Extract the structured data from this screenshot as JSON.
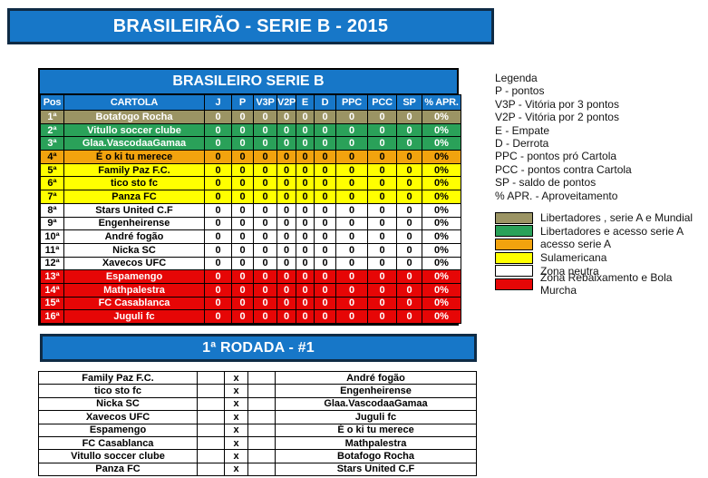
{
  "colors": {
    "banner_blue": "#1777c8",
    "banner_border": "#0f2b45",
    "grid_black": "#000000"
  },
  "top_banner": {
    "title": "BRASILEIRÃO - SERIE B - 2015"
  },
  "standings": {
    "title": "BRASILEIRO SERIE B",
    "columns": [
      "Pos",
      "CARTOLA",
      "J",
      "P",
      "V3P",
      "V2P",
      "E",
      "D",
      "PPC",
      "PCC",
      "SP",
      "% APR."
    ],
    "rows": [
      {
        "pos": "1ª",
        "team": "Botafogo Rocha",
        "zone": "mundial",
        "stats": [
          "0",
          "0",
          "0",
          "0",
          "0",
          "0",
          "0",
          "0",
          "0",
          "0%"
        ]
      },
      {
        "pos": "2ª",
        "team": "Vitullo soccer clube",
        "zone": "libertadores",
        "stats": [
          "0",
          "0",
          "0",
          "0",
          "0",
          "0",
          "0",
          "0",
          "0",
          "0%"
        ]
      },
      {
        "pos": "3ª",
        "team": "Glaa.VascodaaGamaa",
        "zone": "libertadores",
        "stats": [
          "0",
          "0",
          "0",
          "0",
          "0",
          "0",
          "0",
          "0",
          "0",
          "0%"
        ]
      },
      {
        "pos": "4ª",
        "team": "É o ki tu merece",
        "zone": "acesso",
        "stats": [
          "0",
          "0",
          "0",
          "0",
          "0",
          "0",
          "0",
          "0",
          "0",
          "0%"
        ]
      },
      {
        "pos": "5ª",
        "team": "Family Paz F.C.",
        "zone": "sulamericana",
        "stats": [
          "0",
          "0",
          "0",
          "0",
          "0",
          "0",
          "0",
          "0",
          "0",
          "0%"
        ]
      },
      {
        "pos": "6ª",
        "team": "tico sto fc",
        "zone": "sulamericana",
        "stats": [
          "0",
          "0",
          "0",
          "0",
          "0",
          "0",
          "0",
          "0",
          "0",
          "0%"
        ]
      },
      {
        "pos": "7ª",
        "team": "Panza FC",
        "zone": "sulamericana",
        "stats": [
          "0",
          "0",
          "0",
          "0",
          "0",
          "0",
          "0",
          "0",
          "0",
          "0%"
        ]
      },
      {
        "pos": "8ª",
        "team": "Stars United C.F",
        "zone": "neutra",
        "stats": [
          "0",
          "0",
          "0",
          "0",
          "0",
          "0",
          "0",
          "0",
          "0",
          "0%"
        ]
      },
      {
        "pos": "9ª",
        "team": "Engenheirense",
        "zone": "neutra",
        "stats": [
          "0",
          "0",
          "0",
          "0",
          "0",
          "0",
          "0",
          "0",
          "0",
          "0%"
        ]
      },
      {
        "pos": "10ª",
        "team": "André fogão",
        "zone": "neutra",
        "stats": [
          "0",
          "0",
          "0",
          "0",
          "0",
          "0",
          "0",
          "0",
          "0",
          "0%"
        ]
      },
      {
        "pos": "11ª",
        "team": "Nicka SC",
        "zone": "neutra",
        "stats": [
          "0",
          "0",
          "0",
          "0",
          "0",
          "0",
          "0",
          "0",
          "0",
          "0%"
        ]
      },
      {
        "pos": "12ª",
        "team": "Xavecos UFC",
        "zone": "neutra",
        "stats": [
          "0",
          "0",
          "0",
          "0",
          "0",
          "0",
          "0",
          "0",
          "0",
          "0%"
        ]
      },
      {
        "pos": "13ª",
        "team": "Espamengo",
        "zone": "rebaixamento",
        "stats": [
          "0",
          "0",
          "0",
          "0",
          "0",
          "0",
          "0",
          "0",
          "0",
          "0%"
        ]
      },
      {
        "pos": "14ª",
        "team": "Mathpalestra",
        "zone": "rebaixamento",
        "stats": [
          "0",
          "0",
          "0",
          "0",
          "0",
          "0",
          "0",
          "0",
          "0",
          "0%"
        ]
      },
      {
        "pos": "15ª",
        "team": "FC Casablanca",
        "zone": "rebaixamento",
        "stats": [
          "0",
          "0",
          "0",
          "0",
          "0",
          "0",
          "0",
          "0",
          "0",
          "0%"
        ]
      },
      {
        "pos": "16ª",
        "team": "Juguli fc",
        "zone": "rebaixamento",
        "stats": [
          "0",
          "0",
          "0",
          "0",
          "0",
          "0",
          "0",
          "0",
          "0",
          "0%"
        ]
      }
    ]
  },
  "zones": {
    "mundial": {
      "bg": "#9b9464",
      "fg": "#ffffff",
      "label": "Libertadores , serie A e Mundial"
    },
    "libertadores": {
      "bg": "#2aa159",
      "fg": "#ffffff",
      "label": "Libertadores e acesso serie A"
    },
    "acesso": {
      "bg": "#f2a30e",
      "fg": "#000000",
      "label": "acesso serie A"
    },
    "sulamericana": {
      "bg": "#ffff00",
      "fg": "#000000",
      "label": "Sulamericana"
    },
    "neutra": {
      "bg": "#ffffff",
      "fg": "#000000",
      "label": "Zona neutra"
    },
    "rebaixamento": {
      "bg": "#e60606",
      "fg": "#ffffff",
      "label": "Zona Rebaixamento e Bola Murcha"
    }
  },
  "legend": {
    "title": "Legenda",
    "items": [
      "P - pontos",
      "V3P - Vitória por 3 pontos",
      "V2P - Vitória por 2 pontos",
      "E - Empate",
      "D - Derrota",
      "PPC - pontos pró Cartola",
      "PCC - pontos contra Cartola",
      "SP - saldo de pontos",
      "% APR. - Aproveitamento"
    ],
    "zone_order": [
      "mundial",
      "libertadores",
      "acesso",
      "sulamericana",
      "neutra",
      "rebaixamento"
    ]
  },
  "round": {
    "title": "1ª RODADA - #1",
    "separator": "x",
    "score_placeholder": "",
    "matches": [
      {
        "home": "Family Paz F.C.",
        "away": "André fogão"
      },
      {
        "home": "tico sto fc",
        "away": "Engenheirense"
      },
      {
        "home": "Nicka SC",
        "away": "Glaa.VascodaaGamaa"
      },
      {
        "home": "Xavecos UFC",
        "away": "Juguli fc"
      },
      {
        "home": "Espamengo",
        "away": "É o ki tu merece"
      },
      {
        "home": "FC Casablanca",
        "away": "Mathpalestra"
      },
      {
        "home": "Vitullo soccer clube",
        "away": "Botafogo Rocha"
      },
      {
        "home": "Panza FC",
        "away": "Stars United C.F"
      }
    ]
  }
}
